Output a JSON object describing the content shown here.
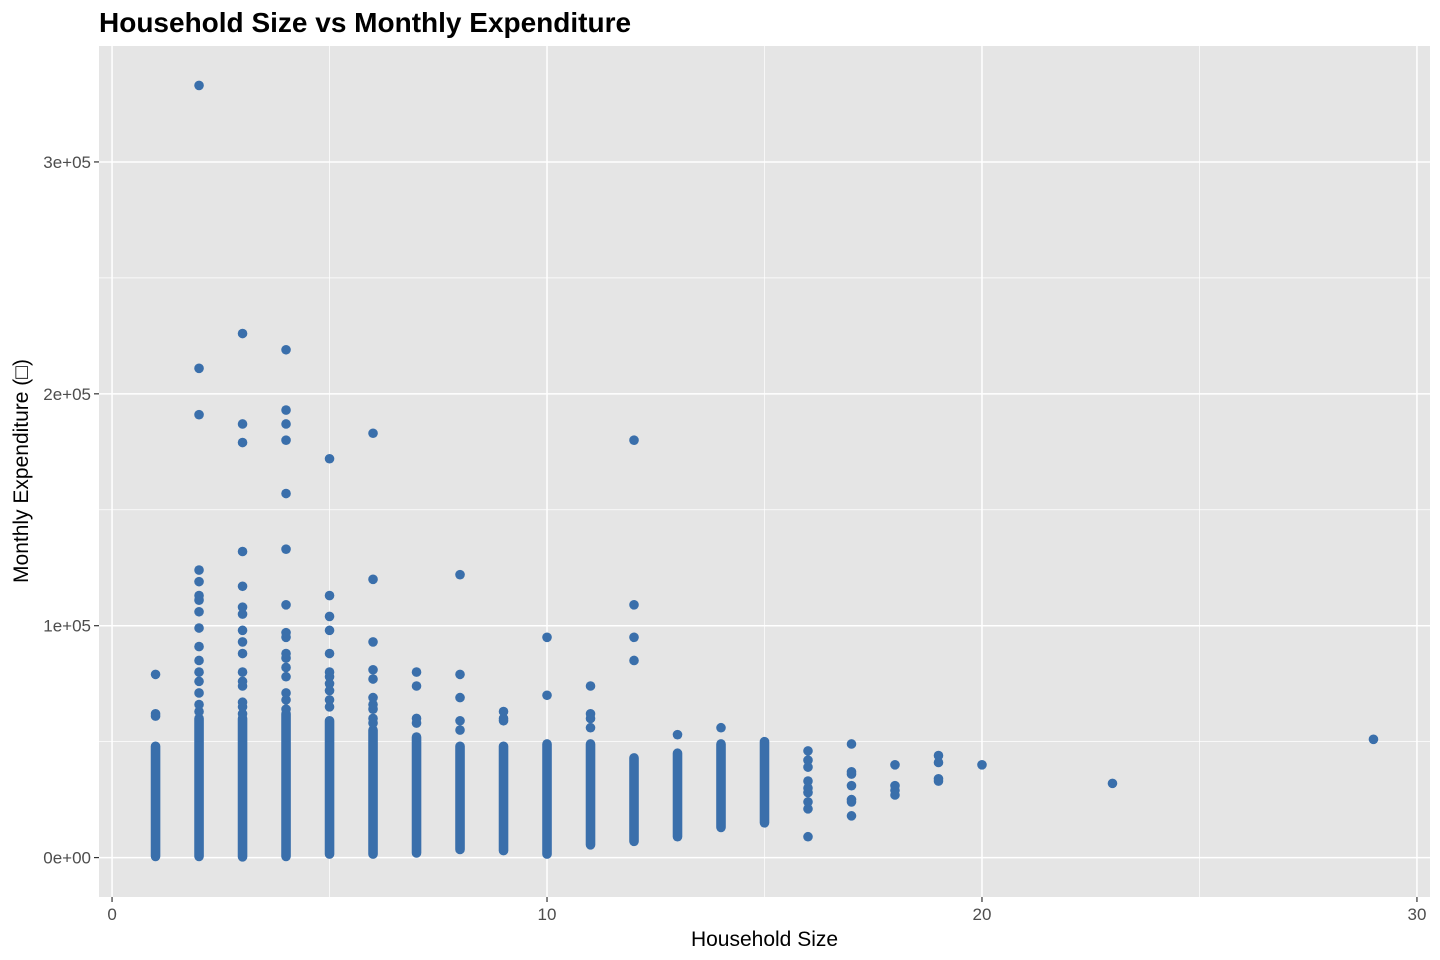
{
  "chart_data": {
    "type": "scatter",
    "title": "Household Size vs Monthly Expenditure",
    "xlabel": "Household Size",
    "ylabel": "Monthly Expenditure (□)",
    "xlim": [
      -0.3,
      30.3
    ],
    "ylim": [
      -17000,
      350000
    ],
    "x_ticks": [
      0,
      10,
      20,
      30
    ],
    "x_tick_labels": [
      "0",
      "10",
      "20",
      "30"
    ],
    "x_minor_ticks": [
      5,
      15,
      25
    ],
    "y_ticks": [
      0,
      100000,
      200000,
      300000
    ],
    "y_tick_labels": [
      "0e+00",
      "1e+05",
      "2e+05",
      "3e+05"
    ],
    "y_minor_ticks": [
      50000,
      150000,
      250000
    ],
    "grid": true,
    "legend": "none",
    "point_color": "#3a6fab",
    "panel_color": "#e5e5e5",
    "grid_color": "#ffffff",
    "columns": [
      {
        "x": 1,
        "min": 500,
        "max": 48000,
        "outliers": [
          61000,
          62000,
          79000
        ]
      },
      {
        "x": 2,
        "min": 500,
        "max": 60000,
        "outliers": [
          63000,
          66000,
          71000,
          76000,
          80000,
          85000,
          91000,
          99000,
          106000,
          111000,
          113000,
          119000,
          124000,
          191000,
          211000,
          333000
        ]
      },
      {
        "x": 3,
        "min": 300,
        "max": 60000,
        "outliers": [
          62000,
          65000,
          67000,
          74000,
          76000,
          80000,
          88000,
          93000,
          98000,
          105000,
          108000,
          117000,
          132000,
          179000,
          187000,
          226000
        ]
      },
      {
        "x": 4,
        "min": 500,
        "max": 62000,
        "outliers": [
          64000,
          68000,
          71000,
          78000,
          82000,
          86000,
          88000,
          95000,
          97000,
          109000,
          133000,
          157000,
          180000,
          187000,
          193000,
          219000
        ]
      },
      {
        "x": 5,
        "min": 1500,
        "max": 59000,
        "outliers": [
          65000,
          68000,
          72000,
          75000,
          78000,
          80000,
          88000,
          98000,
          104000,
          113000,
          172000
        ]
      },
      {
        "x": 6,
        "min": 1500,
        "max": 55000,
        "outliers": [
          58000,
          60000,
          64000,
          66000,
          69000,
          77000,
          81000,
          93000,
          120000,
          183000
        ]
      },
      {
        "x": 7,
        "min": 2000,
        "max": 52000,
        "outliers": [
          58000,
          60000,
          74000,
          80000
        ]
      },
      {
        "x": 8,
        "min": 3500,
        "max": 48000,
        "outliers": [
          55000,
          59000,
          69000,
          79000,
          122000
        ]
      },
      {
        "x": 9,
        "min": 3000,
        "max": 48000,
        "outliers": [
          59000,
          60000,
          63000
        ]
      },
      {
        "x": 10,
        "min": 1500,
        "max": 49000,
        "outliers": [
          70000,
          95000
        ]
      },
      {
        "x": 11,
        "min": 5500,
        "max": 49000,
        "outliers": [
          56000,
          60000,
          62000,
          74000
        ]
      },
      {
        "x": 12,
        "min": 7000,
        "max": 43000,
        "outliers": [
          85000,
          95000,
          109000,
          180000
        ]
      },
      {
        "x": 13,
        "min": 9000,
        "max": 45000,
        "outliers": [
          53000
        ]
      },
      {
        "x": 14,
        "min": 13000,
        "max": 49000,
        "outliers": [
          56000
        ]
      },
      {
        "x": 15,
        "min": 15000,
        "max": 50000,
        "outliers": []
      }
    ],
    "points": [
      [
        16,
        9000
      ],
      [
        16,
        21000
      ],
      [
        16,
        24000
      ],
      [
        16,
        28000
      ],
      [
        16,
        30000
      ],
      [
        16,
        33000
      ],
      [
        16,
        39000
      ],
      [
        16,
        42000
      ],
      [
        16,
        46000
      ],
      [
        17,
        18000
      ],
      [
        17,
        24000
      ],
      [
        17,
        25000
      ],
      [
        17,
        31000
      ],
      [
        17,
        36000
      ],
      [
        17,
        37000
      ],
      [
        17,
        49000
      ],
      [
        18,
        27000
      ],
      [
        18,
        29000
      ],
      [
        18,
        31000
      ],
      [
        18,
        40000
      ],
      [
        19,
        33000
      ],
      [
        19,
        34000
      ],
      [
        19,
        41000
      ],
      [
        19,
        44000
      ],
      [
        20,
        40000
      ],
      [
        23,
        32000
      ],
      [
        29,
        51000
      ]
    ]
  }
}
